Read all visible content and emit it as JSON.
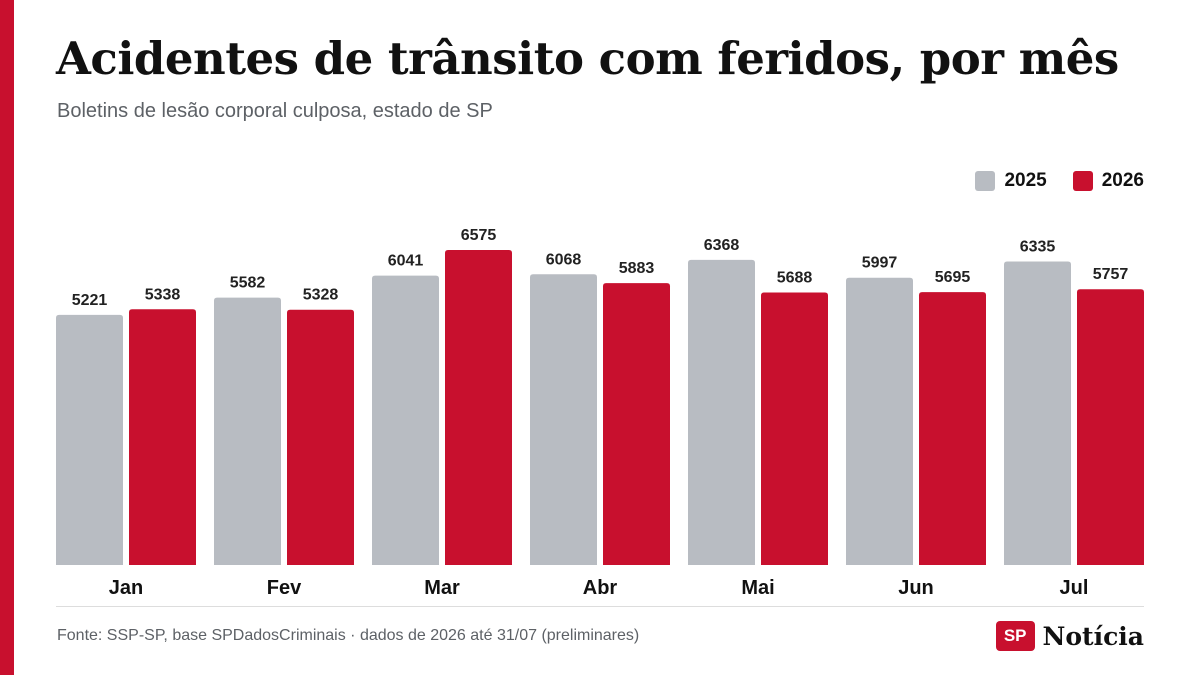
{
  "header": {
    "title": "Acidentes de trânsito com feridos, por mês",
    "subtitle": "Boletins de lesão corporal culposa, estado de SP"
  },
  "colors": {
    "accent": "#c8102e",
    "series_2025": "#b8bcc2",
    "series_2026": "#c8102e"
  },
  "chart_data": {
    "type": "bar",
    "title": "Acidentes de trânsito com feridos, por mês",
    "subtitle": "Boletins de lesão corporal culposa, estado de SP",
    "categories": [
      "Jan",
      "Fev",
      "Mar",
      "Abr",
      "Mai",
      "Jun",
      "Jul"
    ],
    "series": [
      {
        "name": "2025",
        "values": [
          5221,
          5582,
          6041,
          6068,
          6368,
          5997,
          6335
        ]
      },
      {
        "name": "2026",
        "values": [
          5338,
          5328,
          6575,
          5883,
          5688,
          5695,
          5757
        ]
      }
    ],
    "ylim": [
      0,
      6575
    ],
    "grid": false,
    "legend": "top-right"
  },
  "footer": {
    "source": "Fonte: SSP-SP, base SPDadosCriminais · dados de 2026 até 31/07 (preliminares)",
    "logo_badge": "SP",
    "logo_text": "Notícia"
  }
}
